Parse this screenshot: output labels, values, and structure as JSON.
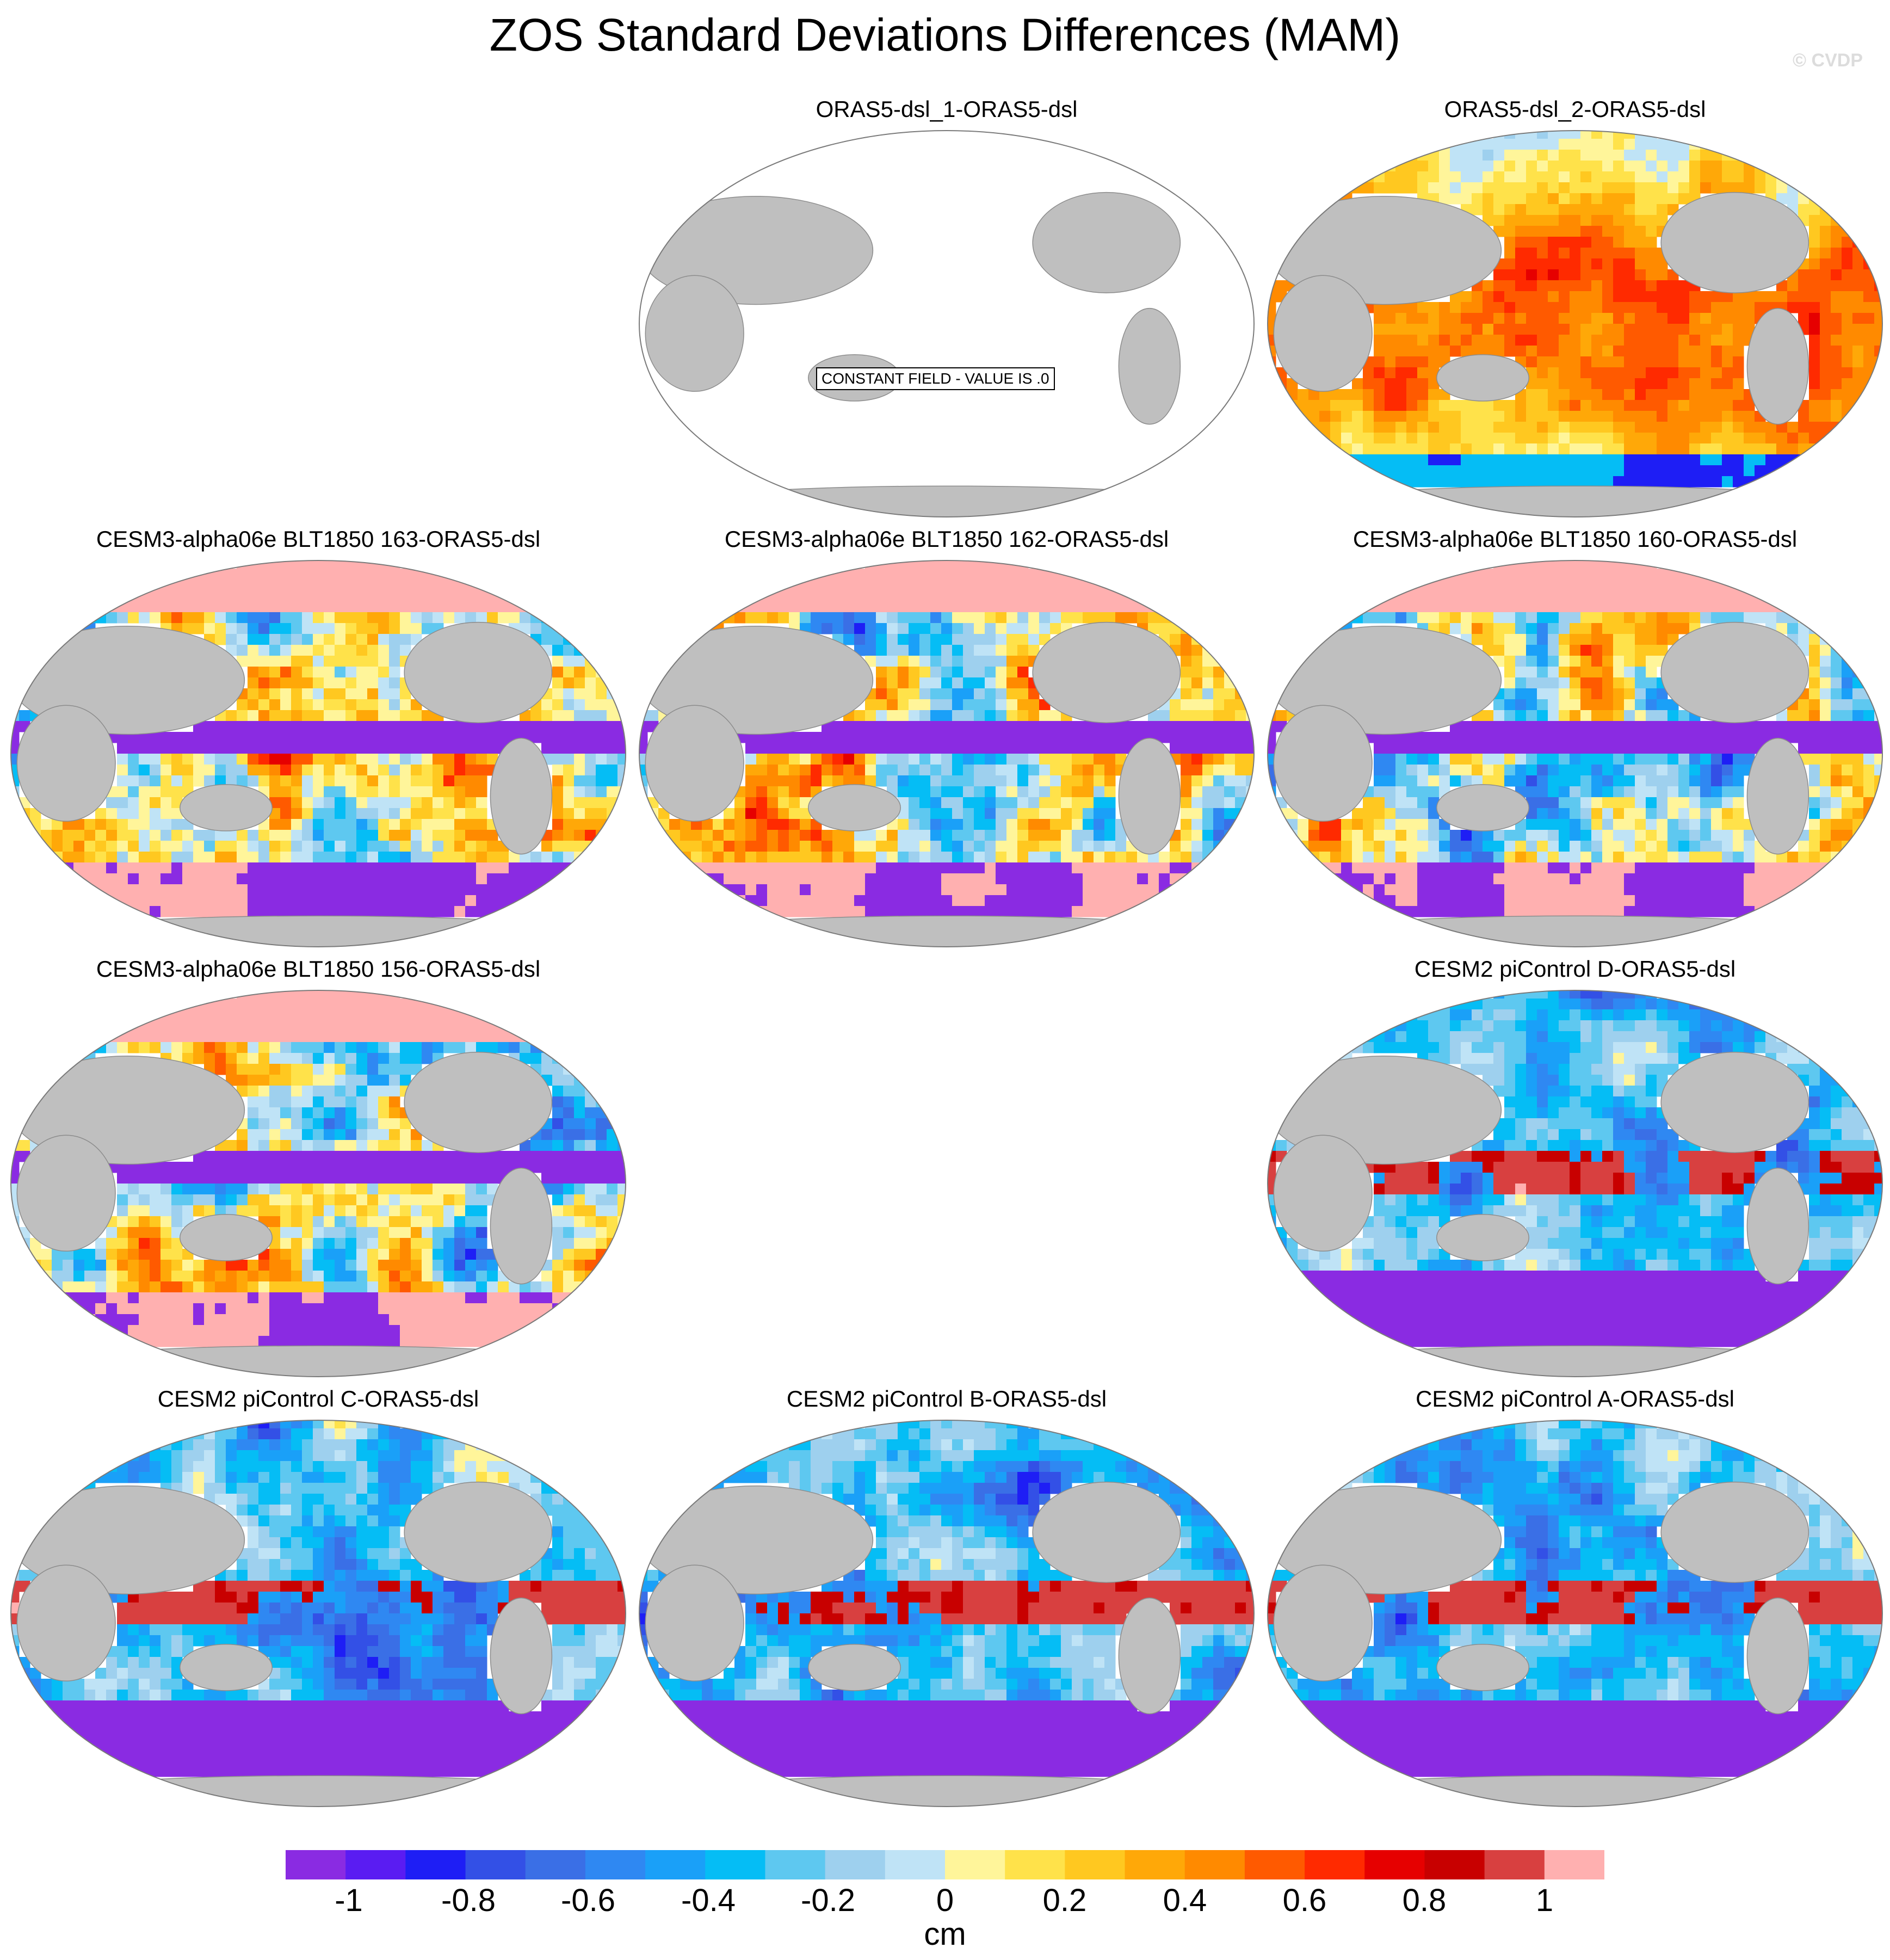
{
  "title": "ZOS Standard Deviations Differences (MAM)",
  "watermark": "© CVDP",
  "panels": [
    {
      "id": "p1",
      "title": "ORAS5-dsl_1-ORAS5-dsl",
      "pattern": "constant",
      "note": "CONSTANT FIELD - VALUE IS .0"
    },
    {
      "id": "p2",
      "title": "ORAS5-dsl_2-ORAS5-dsl",
      "pattern": "warm"
    },
    {
      "id": "p3",
      "title": "CESM3-alpha06e BLT1850 163-ORAS5-dsl",
      "pattern": "mixed"
    },
    {
      "id": "p4",
      "title": "CESM3-alpha06e BLT1850 162-ORAS5-dsl",
      "pattern": "mixed"
    },
    {
      "id": "p5",
      "title": "CESM3-alpha06e BLT1850 160-ORAS5-dsl",
      "pattern": "mixed"
    },
    {
      "id": "p6",
      "title": "CESM3-alpha06e BLT1850 156-ORAS5-dsl",
      "pattern": "mixed"
    },
    {
      "id": "p7",
      "title": "CESM2 piControl D-ORAS5-dsl",
      "pattern": "cool"
    },
    {
      "id": "p8",
      "title": "CESM2 piControl C-ORAS5-dsl",
      "pattern": "cool"
    },
    {
      "id": "p9",
      "title": "CESM2 piControl B-ORAS5-dsl",
      "pattern": "cool"
    },
    {
      "id": "p10",
      "title": "CESM2 piControl A-ORAS5-dsl",
      "pattern": "cool"
    }
  ],
  "colorbar": {
    "unit": "cm",
    "labels": [
      "-1",
      "-0.8",
      "-0.6",
      "-0.4",
      "-0.2",
      "0",
      "0.2",
      "0.4",
      "0.6",
      "0.8",
      "1"
    ],
    "colors": [
      "#8a2be2",
      "#5a1cf2",
      "#1e1ef5",
      "#3350e6",
      "#3a6fe6",
      "#2f88f2",
      "#1aa0f8",
      "#05bdf5",
      "#5ec8f0",
      "#9ed0ee",
      "#bfe3f6",
      "#fff59a",
      "#ffe24a",
      "#ffc820",
      "#ffa808",
      "#ff8a00",
      "#ff5a00",
      "#ff2a00",
      "#e60000",
      "#c80000",
      "#d84040",
      "#ffb0b0"
    ]
  }
}
